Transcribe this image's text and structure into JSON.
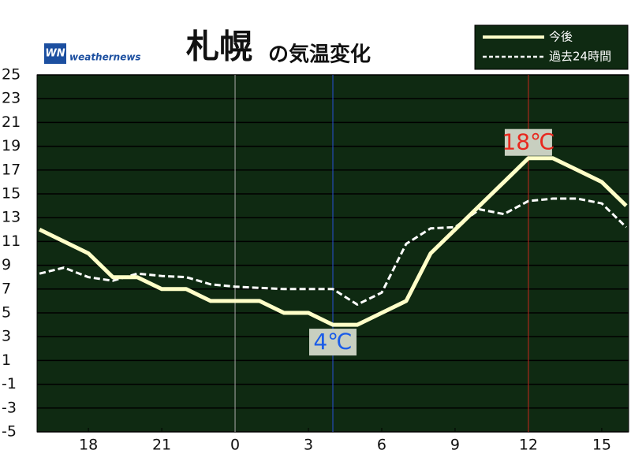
{
  "chart_data": {
    "type": "line",
    "title_city": "札幌",
    "title": "の気温変化",
    "brand": "weathernews",
    "x": [
      16,
      17,
      18,
      19,
      20,
      21,
      22,
      23,
      24,
      25,
      26,
      27,
      28,
      29,
      30,
      31,
      32,
      33,
      34,
      35,
      36,
      37,
      38,
      39,
      40
    ],
    "series": [
      {
        "name": "今後",
        "color": "#ffffc8",
        "style": "solid",
        "values": [
          12,
          11,
          10,
          8,
          8,
          7,
          7,
          6,
          6,
          6,
          5,
          5,
          4,
          4,
          5,
          6,
          10,
          12,
          14,
          16,
          18,
          18,
          17,
          16,
          14
        ]
      },
      {
        "name": "過去24時間",
        "color": "#ffffff",
        "style": "dashed",
        "values": [
          8.3,
          8.8,
          8.0,
          7.7,
          8.3,
          8.1,
          8.0,
          7.4,
          7.2,
          7.1,
          7.0,
          7.0,
          7.0,
          5.7,
          6.7,
          10.8,
          12.1,
          12.2,
          13.7,
          13.3,
          14.4,
          14.6,
          14.6,
          14.2,
          12.2
        ]
      }
    ],
    "xlim": [
      15.9,
      40.1
    ],
    "xticks": [
      18,
      21,
      {
        "value": 24,
        "label": "0"
      },
      {
        "value": 27,
        "label": "3"
      },
      {
        "value": 30,
        "label": "6"
      },
      {
        "value": 33,
        "label": "9"
      },
      {
        "value": 36,
        "label": "12"
      },
      {
        "value": 39,
        "label": "15"
      }
    ],
    "ylim": [
      -5,
      25
    ],
    "yticks": [
      25,
      23,
      21,
      19,
      17,
      15,
      13,
      11,
      9,
      7,
      5,
      3,
      1,
      -1,
      -3,
      -5
    ],
    "grid": true,
    "background": "#0f2a12",
    "legend": "top-right",
    "markers": [
      {
        "x": 24,
        "color": "#aaaaaa"
      },
      {
        "x": 28,
        "color": "#2a50d8",
        "value": 4,
        "label": "4℃",
        "label_color": "#1a5ce8"
      },
      {
        "x": 36,
        "color": "#c8281e",
        "value": 18,
        "label": "18℃",
        "label_color": "#e8281e"
      }
    ]
  }
}
